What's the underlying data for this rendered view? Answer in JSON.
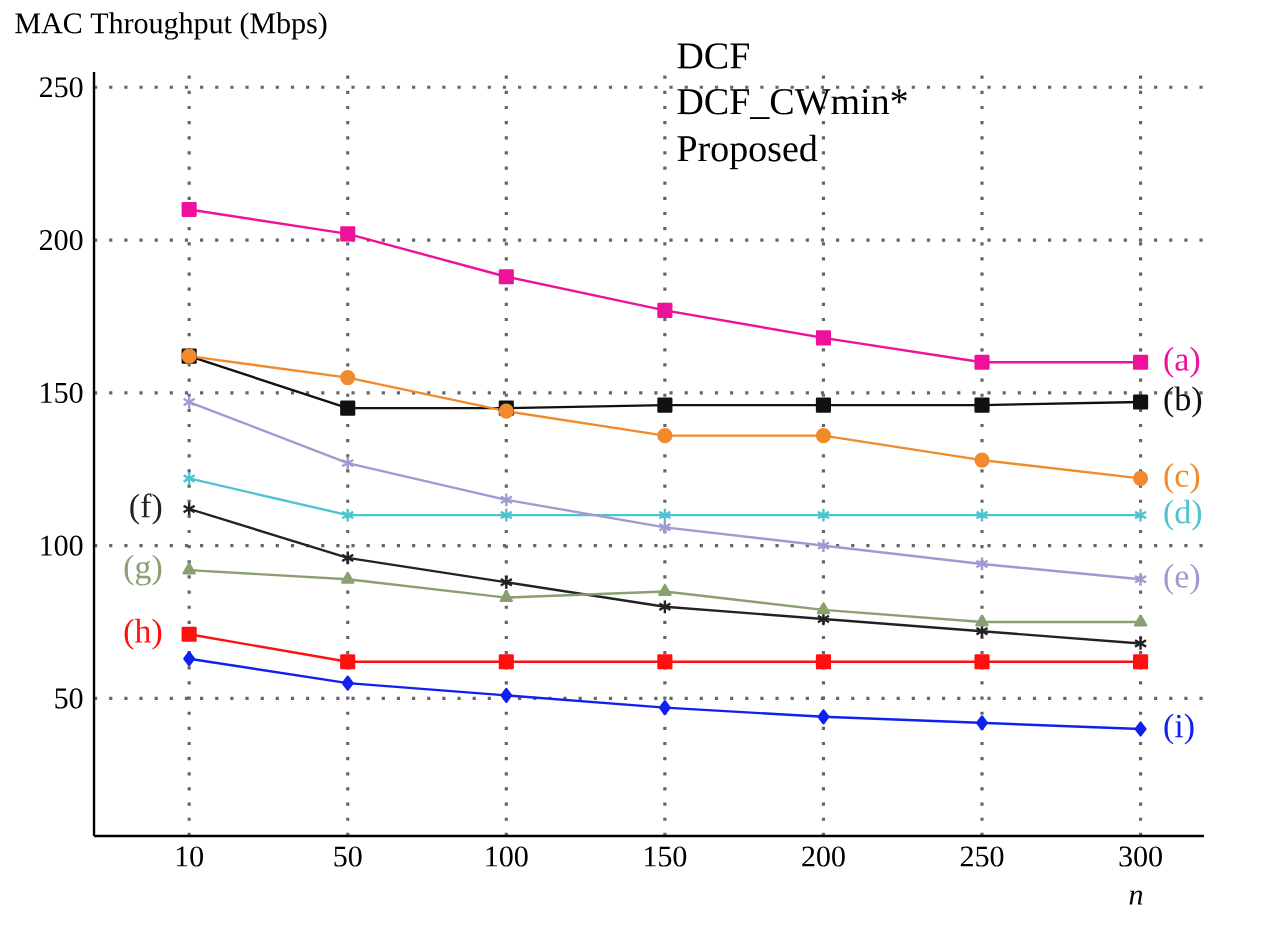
{
  "chart_data": {
    "type": "line",
    "ylabel": "MAC Throughput (Mbps)",
    "xlabel": "*n*",
    "categories": [
      "10",
      "50",
      "100",
      "150",
      "200",
      "250",
      "300"
    ],
    "ylim": [
      5,
      255
    ],
    "yticks": [
      50,
      100,
      150,
      200,
      250
    ],
    "grid": true,
    "annotations": [
      "DCF",
      "DCF_CWmin*",
      "Proposed"
    ],
    "series": [
      {
        "name": "(a)",
        "color": "#ee1199",
        "marker": "square",
        "values": [
          210,
          202,
          188,
          177,
          168,
          160,
          160
        ]
      },
      {
        "name": "(b)",
        "color": "#111111",
        "marker": "square",
        "values": [
          162,
          145,
          145,
          146,
          146,
          146,
          147
        ]
      },
      {
        "name": "(c)",
        "color": "#f08a2c",
        "marker": "circle",
        "values": [
          162,
          155,
          144,
          136,
          136,
          128,
          122
        ]
      },
      {
        "name": "(d)",
        "color": "#4fc3d0",
        "marker": "cross",
        "values": [
          122,
          110,
          110,
          110,
          110,
          110,
          110
        ]
      },
      {
        "name": "(e)",
        "color": "#a09ad0",
        "marker": "cross",
        "values": [
          147,
          127,
          115,
          106,
          100,
          94,
          89
        ]
      },
      {
        "name": "(f)",
        "color": "#222222",
        "marker": "cross",
        "values": [
          112,
          96,
          88,
          80,
          76,
          72,
          68
        ]
      },
      {
        "name": "(g)",
        "color": "#8aa070",
        "marker": "triangle",
        "values": [
          92,
          89,
          83,
          85,
          79,
          75,
          75
        ]
      },
      {
        "name": "(h)",
        "color": "#ff1010",
        "marker": "square",
        "values": [
          71,
          62,
          62,
          62,
          62,
          62,
          62
        ]
      },
      {
        "name": "(i)",
        "color": "#1020ee",
        "marker": "diamond",
        "values": [
          63,
          55,
          51,
          47,
          44,
          42,
          40
        ]
      }
    ]
  }
}
